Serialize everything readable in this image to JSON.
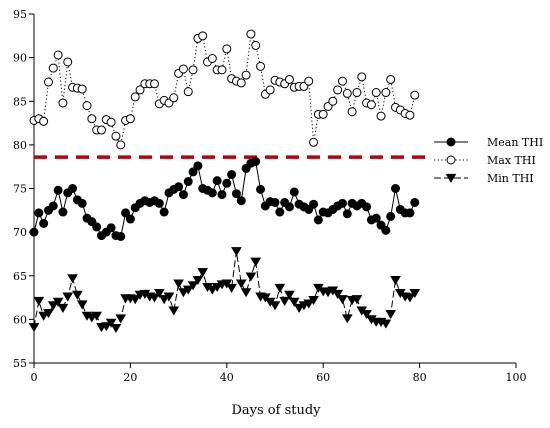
{
  "chart_data": {
    "type": "line",
    "title": "",
    "xlabel": "Days of study",
    "ylabel": "",
    "xlim": [
      0,
      100
    ],
    "ylim": [
      55,
      95
    ],
    "xticks": [
      0,
      20,
      40,
      60,
      80,
      100
    ],
    "yticks": [
      55,
      60,
      65,
      70,
      75,
      80,
      85,
      90,
      95
    ],
    "grid": false,
    "legend_position": "right",
    "reference_line": {
      "y": 78.6,
      "style": "dashed",
      "color": "#c00000"
    },
    "series": [
      {
        "name": "Mean THI",
        "marker": "filled-circle",
        "line_style": "solid",
        "color": "#000000",
        "x": [
          0,
          1,
          2,
          3,
          4,
          5,
          6,
          7,
          8,
          9,
          10,
          11,
          12,
          13,
          14,
          15,
          16,
          17,
          18,
          19,
          20,
          21,
          22,
          23,
          24,
          25,
          26,
          27,
          28,
          29,
          30,
          31,
          32,
          33,
          34,
          35,
          36,
          37,
          38,
          39,
          40,
          41,
          42,
          43,
          44,
          45,
          46,
          47,
          48,
          49,
          50,
          51,
          52,
          53,
          54,
          55,
          56,
          57,
          58,
          59,
          60,
          61,
          62,
          63,
          64,
          65,
          66,
          67,
          68,
          69,
          70,
          71,
          72,
          73,
          74,
          75,
          76,
          77,
          78,
          79
        ],
        "y": [
          70.0,
          72.2,
          71.0,
          72.5,
          73.0,
          74.8,
          72.3,
          74.5,
          75.0,
          73.7,
          73.3,
          71.6,
          71.2,
          70.6,
          69.6,
          70.0,
          70.5,
          69.6,
          69.5,
          72.2,
          71.5,
          72.8,
          73.3,
          73.6,
          73.4,
          73.6,
          73.3,
          72.3,
          74.5,
          74.9,
          75.2,
          74.3,
          75.8,
          76.9,
          77.6,
          75.0,
          74.8,
          74.5,
          75.9,
          74.3,
          75.6,
          76.6,
          74.4,
          73.6,
          77.3,
          77.9,
          78.1,
          74.9,
          73.0,
          73.5,
          73.4,
          72.3,
          73.4,
          72.9,
          74.6,
          73.2,
          72.9,
          72.6,
          73.2,
          71.4,
          72.3,
          72.2,
          72.6,
          73.0,
          73.3,
          72.1,
          73.3,
          73.0,
          73.3,
          72.9,
          71.4,
          71.6,
          70.8,
          70.2,
          71.8,
          75.0,
          72.6,
          72.2,
          72.2,
          73.4
        ]
      },
      {
        "name": "Max THI",
        "marker": "open-circle",
        "line_style": "dotted",
        "color": "#000000",
        "x": [
          0,
          1,
          2,
          3,
          4,
          5,
          6,
          7,
          8,
          9,
          10,
          11,
          12,
          13,
          14,
          15,
          16,
          17,
          18,
          19,
          20,
          21,
          22,
          23,
          24,
          25,
          26,
          27,
          28,
          29,
          30,
          31,
          32,
          33,
          34,
          35,
          36,
          37,
          38,
          39,
          40,
          41,
          42,
          43,
          44,
          45,
          46,
          47,
          48,
          49,
          50,
          51,
          52,
          53,
          54,
          55,
          56,
          57,
          58,
          59,
          60,
          61,
          62,
          63,
          64,
          65,
          66,
          67,
          68,
          69,
          70,
          71,
          72,
          73,
          74,
          75,
          76,
          77,
          78,
          79
        ],
        "y": [
          82.8,
          83.0,
          82.7,
          87.2,
          88.8,
          90.3,
          84.8,
          89.5,
          86.6,
          86.5,
          86.4,
          84.5,
          83.0,
          81.7,
          81.7,
          82.9,
          82.6,
          81.0,
          80.0,
          82.8,
          83.0,
          85.5,
          86.3,
          87.0,
          87.0,
          87.0,
          84.7,
          85.1,
          84.8,
          85.4,
          88.2,
          88.7,
          86.1,
          88.6,
          92.2,
          92.5,
          89.5,
          89.9,
          88.6,
          88.6,
          91.0,
          87.6,
          87.3,
          87.1,
          88.0,
          92.7,
          91.4,
          89.0,
          85.8,
          86.3,
          87.4,
          87.2,
          87.0,
          87.5,
          86.6,
          86.7,
          86.7,
          87.3,
          80.3,
          83.5,
          83.5,
          84.4,
          85.0,
          86.3,
          87.3,
          85.9,
          83.8,
          86.0,
          87.8,
          84.8,
          84.6,
          86.0,
          83.3,
          86.0,
          87.5,
          84.3,
          84.0,
          83.6,
          83.4,
          85.7
        ]
      },
      {
        "name": "Min THI",
        "marker": "filled-triangle-down",
        "line_style": "dashed",
        "color": "#000000",
        "x": [
          0,
          1,
          2,
          3,
          4,
          5,
          6,
          7,
          8,
          9,
          10,
          11,
          12,
          13,
          14,
          15,
          16,
          17,
          18,
          19,
          20,
          21,
          22,
          23,
          24,
          25,
          26,
          27,
          28,
          29,
          30,
          31,
          32,
          33,
          34,
          35,
          36,
          37,
          38,
          39,
          40,
          41,
          42,
          43,
          44,
          45,
          46,
          47,
          48,
          49,
          50,
          51,
          52,
          53,
          54,
          55,
          56,
          57,
          58,
          59,
          60,
          61,
          62,
          63,
          64,
          65,
          66,
          67,
          68,
          69,
          70,
          71,
          72,
          73,
          74,
          75,
          76,
          77,
          78,
          79
        ],
        "y": [
          59.1,
          62.1,
          60.4,
          60.7,
          61.6,
          62.0,
          61.3,
          62.6,
          64.7,
          62.8,
          61.7,
          60.4,
          60.2,
          60.4,
          59.1,
          59.2,
          59.6,
          59.0,
          60.1,
          62.4,
          62.4,
          62.3,
          62.8,
          62.9,
          62.6,
          62.5,
          63.0,
          62.3,
          62.6,
          61.0,
          64.1,
          63.1,
          63.4,
          63.9,
          64.5,
          65.4,
          63.7,
          63.4,
          63.7,
          64.0,
          64.1,
          63.6,
          67.8,
          64.1,
          63.1,
          64.9,
          66.6,
          62.6,
          62.5,
          62.0,
          61.6,
          63.6,
          62.1,
          62.8,
          62.0,
          61.3,
          61.6,
          61.8,
          62.2,
          63.6,
          63.2,
          63.1,
          63.3,
          62.9,
          62.3,
          60.1,
          62.2,
          62.3,
          61.0,
          60.6,
          60.0,
          59.7,
          59.7,
          59.5,
          60.6,
          64.5,
          63.0,
          62.6,
          62.5,
          63.0
        ]
      }
    ]
  }
}
